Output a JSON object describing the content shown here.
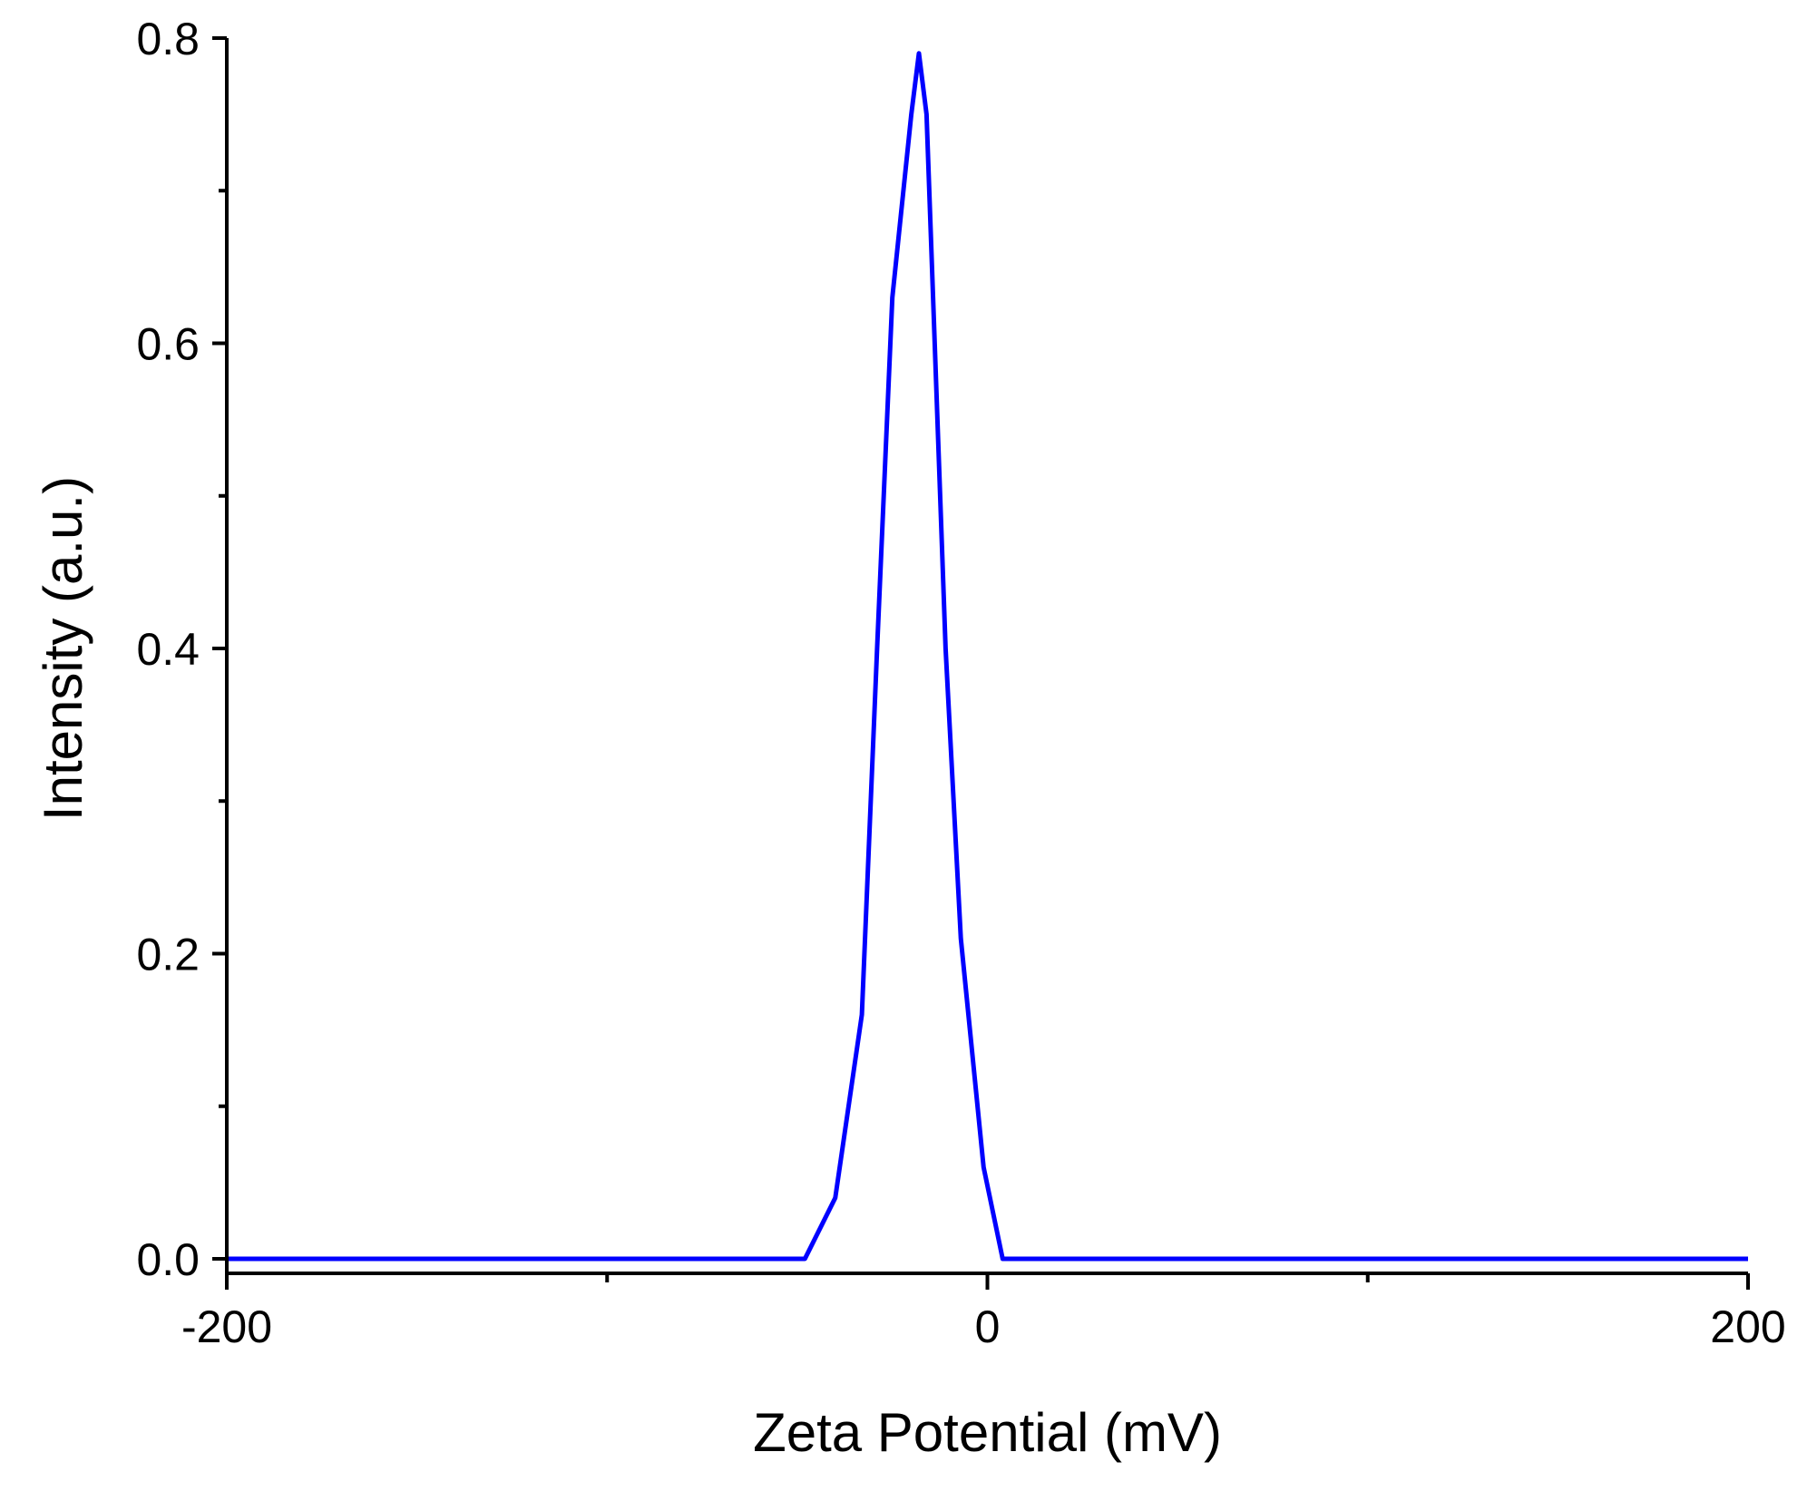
{
  "chart_data": {
    "type": "line",
    "xlabel": "Zeta Potential (mV)",
    "ylabel": "Intensity (a.u.)",
    "xlim": [
      -200,
      200
    ],
    "ylim": [
      0,
      0.8
    ],
    "x_ticks": [
      -200,
      0,
      200
    ],
    "x_tick_labels": [
      "-200",
      "0",
      "200"
    ],
    "x_minor_ticks": [
      -100,
      100
    ],
    "y_ticks": [
      0.0,
      0.2,
      0.4,
      0.6,
      0.8
    ],
    "y_tick_labels": [
      "0.0",
      "0.2",
      "0.4",
      "0.6",
      "0.8"
    ],
    "y_minor_ticks": [
      0.1,
      0.3,
      0.5,
      0.7
    ],
    "grid": false,
    "legend": "none",
    "series": [
      {
        "color": "#0000ff",
        "x": [
          -200,
          -48,
          -40,
          -33,
          -29,
          -25,
          -20,
          -18,
          -16,
          -11,
          -7,
          -1,
          4,
          200
        ],
        "y": [
          0,
          0,
          0.04,
          0.16,
          0.4,
          0.63,
          0.75,
          0.79,
          0.75,
          0.4,
          0.21,
          0.06,
          0,
          0
        ]
      }
    ]
  }
}
